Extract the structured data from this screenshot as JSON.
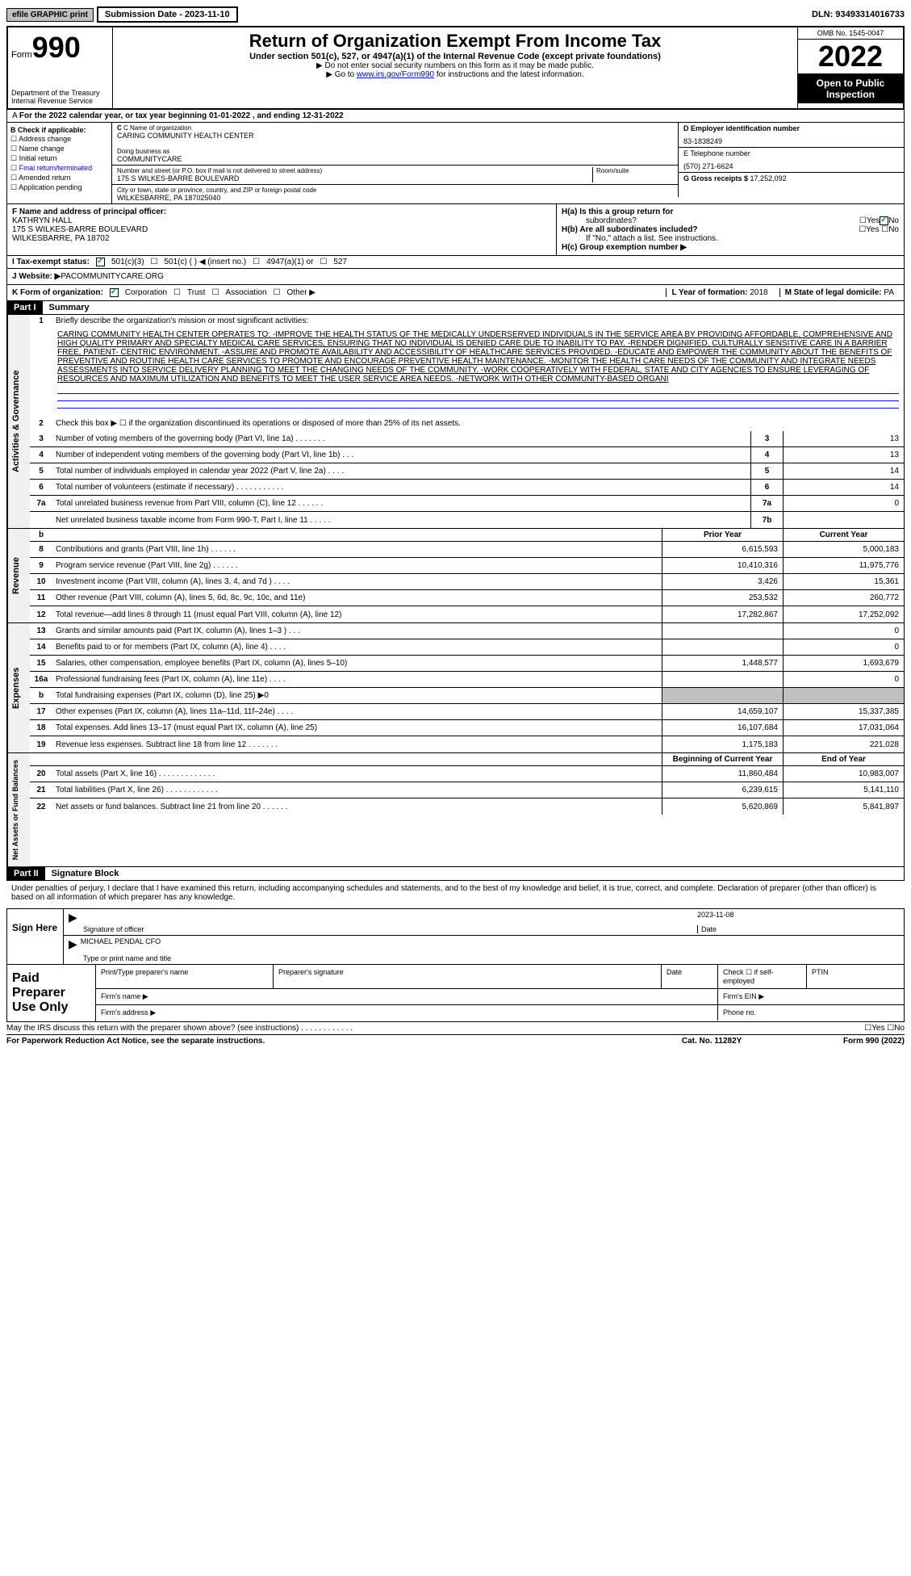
{
  "top": {
    "efile": "efile GRAPHIC print",
    "sub_date_label": "Submission Date - ",
    "sub_date": "2023-11-10",
    "dln_label": "DLN: ",
    "dln": "93493314016733"
  },
  "header": {
    "form_label": "Form",
    "form_num": "990",
    "dept": "Department of the Treasury Internal Revenue Service",
    "title": "Return of Organization Exempt From Income Tax",
    "sub": "Under section 501(c), 527, or 4947(a)(1) of the Internal Revenue Code (except private foundations)",
    "note1": "▶ Do not enter social security numbers on this form as it may be made public.",
    "note2_pre": "▶ Go to ",
    "note2_link": "www.irs.gov/Form990",
    "note2_post": " for instructions and the latest information.",
    "omb": "OMB No. 1545-0047",
    "year": "2022",
    "public": "Open to Public Inspection"
  },
  "row_a": "For the 2022 calendar year, or tax year beginning 01-01-2022   , and ending 12-31-2022",
  "col_b": {
    "title": "B Check if applicable:",
    "opts": [
      "Address change",
      "Name change",
      "Initial return",
      "Final return/terminated",
      "Amended return",
      "Application pending"
    ]
  },
  "col_c": {
    "name_label": "C Name of organization",
    "name": "CARING COMMUNITY HEALTH CENTER",
    "dba_label": "Doing business as",
    "dba": "COMMUNITYCARE",
    "addr_label": "Number and street (or P.O. box if mail is not delivered to street address)",
    "addr": "175 S WILKES-BARRE BOULEVARD",
    "room_label": "Room/suite",
    "city_label": "City or town, state or province, country, and ZIP or foreign postal code",
    "city": "WILKESBARRE, PA  187025040"
  },
  "col_d": {
    "ein_label": "D Employer identification number",
    "ein": "83-1838249",
    "phone_label": "E Telephone number",
    "phone": "(570) 271-6624",
    "gross_label": "G Gross receipts $ ",
    "gross": "17,252,092"
  },
  "officer": {
    "label": "F  Name and address of principal officer:",
    "name": "KATHRYN HALL",
    "addr1": "175 S WILKES-BARRE BOULEVARD",
    "addr2": "WILKESBARRE, PA  18702"
  },
  "h": {
    "ha": "H(a)  Is this a group return for",
    "ha2": "subordinates?",
    "hb": "H(b)  Are all subordinates included?",
    "hb_note": "If \"No,\" attach a list. See instructions.",
    "hc": "H(c)  Group exemption number ▶"
  },
  "tax_status": {
    "label": "I   Tax-exempt status:",
    "opt1": "501(c)(3)",
    "opt2": "501(c) (   ) ◀ (insert no.)",
    "opt3": "4947(a)(1) or",
    "opt4": "527"
  },
  "website": {
    "label": "J  Website: ▶  ",
    "val": "PACOMMUNITYCARE.ORG"
  },
  "form_org": {
    "label": "K Form of organization:",
    "opts": [
      "Corporation",
      "Trust",
      "Association",
      "Other ▶"
    ],
    "year_label": "L Year of formation: ",
    "year": "2018",
    "state_label": "M State of legal domicile: ",
    "state": "PA"
  },
  "part1": {
    "header": "Part I",
    "title": "Summary",
    "vtext1": "Activities & Governance",
    "line1_label": "Briefly describe the organization's mission or most significant activities:",
    "mission": "CARING COMMUNITY HEALTH CENTER OPERATES TO: -IMPROVE THE HEALTH STATUS OF THE MEDICALLY UNDERSERVED INDIVIDUALS IN THE SERVICE AREA BY PROVIDING AFFORDABLE, COMPREHENSIVE AND HIGH QUALITY PRIMARY AND SPECIALTY MEDICAL CARE SERVICES, ENSURING THAT NO INDIVIDUAL IS DENIED CARE DUE TO INABILITY TO PAY. -RENDER DIGNIFIED, CULTURALLY SENSITIVE CARE IN A BARRIER FREE, PATIENT- CENTRIC ENVIRONMENT. -ASSURE AND PROMOTE AVAILABILITY AND ACCESSIBILITY OF HEALTHCARE SERVICES PROVIDED. -EDUCATE AND EMPOWER THE COMMUNITY ABOUT THE BENEFITS OF PREVENTIVE AND ROUTINE HEALTH CARE SERVICES TO PROMOTE AND ENCOURAGE PREVENTIVE HEALTH MAINTENANCE. -MONITOR THE HEALTH CARE NEEDS OF THE COMMUNITY AND INTEGRATE NEEDS ASSESSMENTS INTO SERVICE DELIVERY PLANNING TO MEET THE CHANGING NEEDS OF THE COMMUNITY. -WORK COOPERATIVELY WITH FEDERAL, STATE AND CITY AGENCIES TO ENSURE LEVERAGING OF RESOURCES AND MAXIMUM UTILIZATION AND BENEFITS TO MEET THE USER SERVICE AREA NEEDS. -NETWORK WITH OTHER COMMUNITY-BASED ORGANI",
    "line2": "Check this box ▶ ☐ if the organization discontinued its operations or disposed of more than 25% of its net assets.",
    "lines_gov": [
      {
        "n": "3",
        "t": "Number of voting members of the governing body (Part VI, line 1a)  .   .   .   .   .   .   .",
        "b": "3",
        "v": "13"
      },
      {
        "n": "4",
        "t": "Number of independent voting members of the governing body (Part VI, line 1b)   .   .   .",
        "b": "4",
        "v": "13"
      },
      {
        "n": "5",
        "t": "Total number of individuals employed in calendar year 2022 (Part V, line 2a)   .   .   .   .",
        "b": "5",
        "v": "14"
      },
      {
        "n": "6",
        "t": "Total number of volunteers (estimate if necessary)  .   .   .   .   .   .   .   .   .   .   .",
        "b": "6",
        "v": "14"
      },
      {
        "n": "7a",
        "t": "Total unrelated business revenue from Part VIII, column (C), line 12  .   .   .   .   .   .",
        "b": "7a",
        "v": "0"
      },
      {
        "n": "",
        "t": "Net unrelated business taxable income from Form 990-T, Part I, line 11   .   .   .   .   .",
        "b": "7b",
        "v": ""
      }
    ],
    "vtext2": "Revenue",
    "prior_header": "Prior Year",
    "current_header": "Current Year",
    "lines_rev": [
      {
        "n": "8",
        "t": "Contributions and grants (Part VIII, line 1h)   .   .   .   .   .   .",
        "p": "6,615,593",
        "c": "5,000,183"
      },
      {
        "n": "9",
        "t": "Program service revenue (Part VIII, line 2g)   .   .   .   .   .   .",
        "p": "10,410,316",
        "c": "11,975,776"
      },
      {
        "n": "10",
        "t": "Investment income (Part VIII, column (A), lines 3, 4, and 7d )   .   .   .   .",
        "p": "3,426",
        "c": "15,361"
      },
      {
        "n": "11",
        "t": "Other revenue (Part VIII, column (A), lines 5, 6d, 8c, 9c, 10c, and 11e)",
        "p": "253,532",
        "c": "260,772"
      },
      {
        "n": "12",
        "t": "Total revenue—add lines 8 through 11 (must equal Part VIII, column (A), line 12)",
        "p": "17,282,867",
        "c": "17,252,092"
      }
    ],
    "vtext3": "Expenses",
    "lines_exp": [
      {
        "n": "13",
        "t": "Grants and similar amounts paid (Part IX, column (A), lines 1–3 )  .   .   .",
        "p": "",
        "c": "0"
      },
      {
        "n": "14",
        "t": "Benefits paid to or for members (Part IX, column (A), line 4)  .   .   .   .",
        "p": "",
        "c": "0"
      },
      {
        "n": "15",
        "t": "Salaries, other compensation, employee benefits (Part IX, column (A), lines 5–10)",
        "p": "1,448,577",
        "c": "1,693,679"
      },
      {
        "n": "16a",
        "t": "Professional fundraising fees (Part IX, column (A), line 11e)  .   .   .   .",
        "p": "",
        "c": "0"
      },
      {
        "n": "b",
        "t": "Total fundraising expenses (Part IX, column (D), line 25) ▶0",
        "p": "",
        "c": "",
        "gray": true
      },
      {
        "n": "17",
        "t": "Other expenses (Part IX, column (A), lines 11a–11d, 11f–24e)   .   .   .   .",
        "p": "14,659,107",
        "c": "15,337,385"
      },
      {
        "n": "18",
        "t": "Total expenses. Add lines 13–17 (must equal Part IX, column (A), line 25)",
        "p": "16,107,684",
        "c": "17,031,064"
      },
      {
        "n": "19",
        "t": "Revenue less expenses. Subtract line 18 from line 12  .   .   .   .   .   .   .",
        "p": "1,175,183",
        "c": "221,028"
      }
    ],
    "vtext4": "Net Assets or Fund Balances",
    "begin_header": "Beginning of Current Year",
    "end_header": "End of Year",
    "lines_net": [
      {
        "n": "20",
        "t": "Total assets (Part X, line 16)  .   .   .   .   .   .   .   .   .   .   .   .   .",
        "p": "11,860,484",
        "c": "10,983,007"
      },
      {
        "n": "21",
        "t": "Total liabilities (Part X, line 26)  .   .   .   .   .   .   .   .   .   .   .   .",
        "p": "6,239,615",
        "c": "5,141,110"
      },
      {
        "n": "22",
        "t": "Net assets or fund balances. Subtract line 21 from line 20  .   .   .   .   .   .",
        "p": "5,620,869",
        "c": "5,841,897"
      }
    ]
  },
  "part2": {
    "header": "Part II",
    "title": "Signature Block",
    "text": "Under penalties of perjury, I declare that I have examined this return, including accompanying schedules and statements, and to the best of my knowledge and belief, it is true, correct, and complete. Declaration of preparer (other than officer) is based on all information of which preparer has any knowledge.",
    "sign_here": "Sign Here",
    "sig_officer": "Signature of officer",
    "sig_date": "2023-11-08",
    "date_label": "Date",
    "sig_name": "MICHAEL PENDAL CFO",
    "sig_name_label": "Type or print name and title",
    "paid": "Paid Preparer Use Only",
    "prep_name": "Print/Type preparer's name",
    "prep_sig": "Preparer's signature",
    "prep_date": "Date",
    "prep_self": "Check ☐ if self-employed",
    "prep_ptin": "PTIN",
    "firm_name": "Firm's name   ▶",
    "firm_ein": "Firm's EIN ▶",
    "firm_addr": "Firm's address ▶",
    "phone": "Phone no.",
    "discuss": "May the IRS discuss this return with the preparer shown above? (see instructions)  .   .   .   .   .   .   .   .   .   .   .   .",
    "yes": "Yes",
    "no": "No"
  },
  "footer": {
    "left": "For Paperwork Reduction Act Notice, see the separate instructions.",
    "mid": "Cat. No. 11282Y",
    "right": "Form 990 (2022)"
  }
}
